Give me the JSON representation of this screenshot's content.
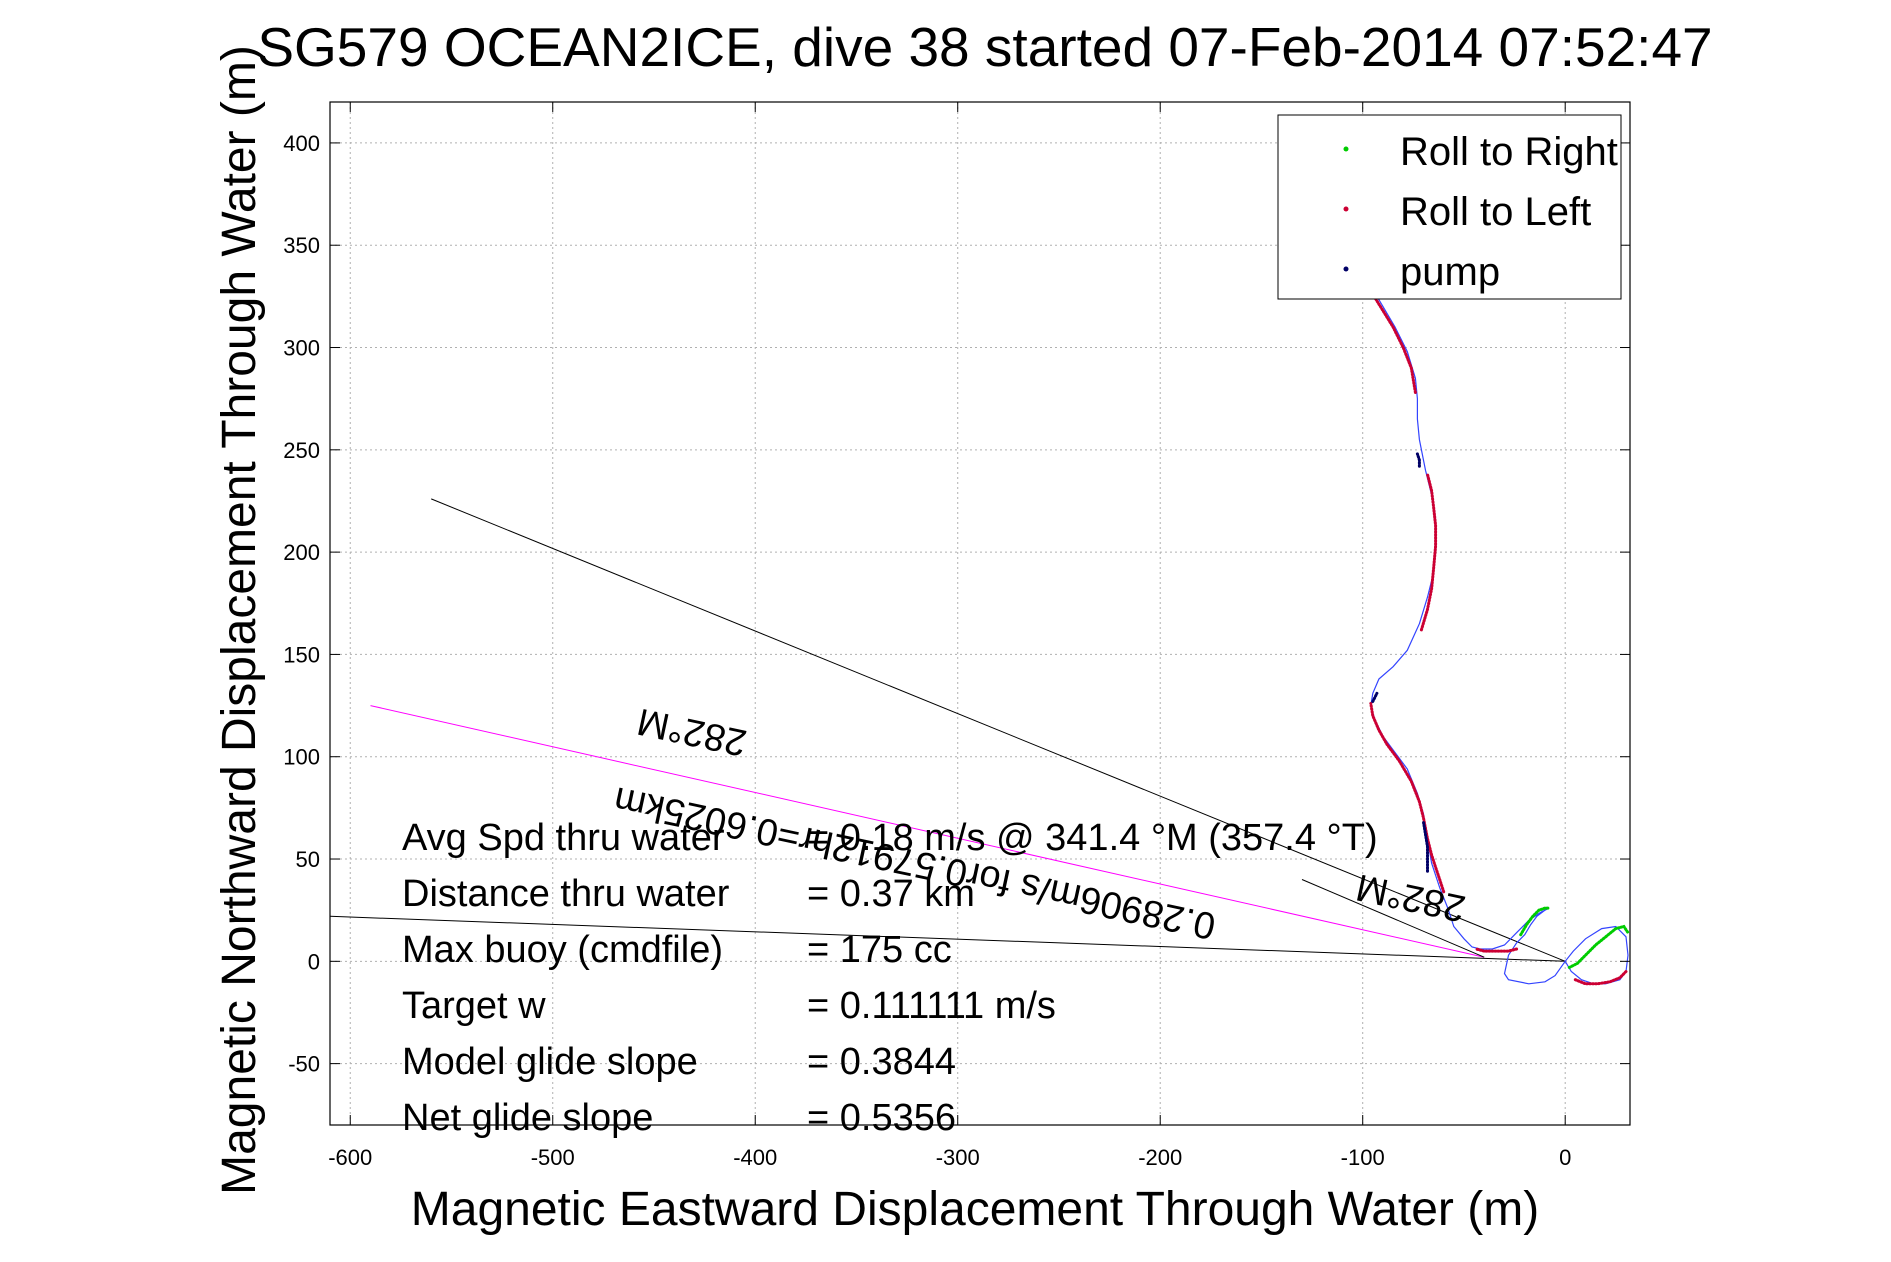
{
  "chart_data": {
    "type": "line",
    "title": "SG579 OCEAN2ICE, dive 38 started 07-Feb-2014 07:52:47",
    "xlabel": "Magnetic Eastward Displacement Through Water (m)",
    "ylabel": "Magnetic Northward Displacement Through Water (m)",
    "xlim": [
      -610,
      32
    ],
    "ylim": [
      -80,
      420
    ],
    "xticks": [
      -600,
      -500,
      -400,
      -300,
      -200,
      -100,
      0
    ],
    "yticks": [
      -50,
      0,
      50,
      100,
      150,
      200,
      250,
      300,
      350,
      400
    ],
    "grid": true,
    "legend_position": "top-right",
    "legend": [
      {
        "label": "Roll to Right",
        "color": "#00cc00"
      },
      {
        "label": "Roll to Left",
        "color": "#cc0033"
      },
      {
        "label": "pump",
        "color": "#000066"
      }
    ],
    "track": {
      "color": "#3344ff",
      "points": [
        [
          0,
          0
        ],
        [
          4,
          -3
        ],
        [
          10,
          -8
        ],
        [
          20,
          -12
        ],
        [
          28,
          -10
        ],
        [
          31,
          -5
        ],
        [
          31,
          5
        ],
        [
          30,
          14
        ],
        [
          27,
          17
        ],
        [
          22,
          17
        ],
        [
          15,
          14
        ],
        [
          8,
          8
        ],
        [
          3,
          3
        ],
        [
          0,
          0
        ],
        [
          -3,
          -3
        ],
        [
          -8,
          -7
        ],
        [
          -12,
          -10
        ],
        [
          -18,
          -11
        ],
        [
          -28,
          -11
        ],
        [
          -40,
          -10
        ],
        [
          -50,
          -10
        ],
        [
          -58,
          -11
        ],
        [
          -66,
          -11
        ],
        [
          -72,
          -10
        ],
        [
          -80,
          -9
        ],
        [
          -87,
          -8
        ],
        [
          -92,
          -7
        ],
        [
          -96,
          -5
        ],
        [
          -98,
          -3
        ],
        [
          -99,
          0
        ],
        [
          -98,
          3
        ],
        [
          -96,
          5
        ],
        [
          -93,
          7
        ],
        [
          -90,
          8
        ],
        [
          -86,
          9
        ],
        [
          -82,
          10
        ],
        [
          -78,
          10
        ],
        [
          -74,
          10
        ],
        [
          -70,
          10
        ],
        [
          -66,
          10
        ],
        [
          -62,
          9
        ],
        [
          -58,
          8
        ],
        [
          -54,
          6
        ],
        [
          -50,
          4
        ],
        [
          -46,
          3
        ],
        [
          -42,
          2
        ],
        [
          -38,
          1
        ],
        [
          -36,
          0
        ],
        [
          -38,
          -2
        ],
        [
          -45,
          -4
        ],
        [
          -55,
          -5
        ],
        [
          -62,
          -6
        ],
        [
          -66,
          -7
        ],
        [
          -70,
          -7
        ],
        [
          -74,
          -6
        ],
        [
          -78,
          -5
        ],
        [
          -82,
          -4
        ],
        [
          -86,
          -3
        ],
        [
          -90,
          -2
        ],
        [
          -93,
          0
        ],
        [
          -94,
          3
        ],
        [
          -92,
          8
        ],
        [
          -88,
          12
        ],
        [
          -82,
          16
        ],
        [
          -75,
          19
        ],
        [
          -68,
          22
        ],
        [
          -62,
          24
        ],
        [
          -55,
          25
        ],
        [
          -48,
          26
        ],
        [
          -42,
          26
        ],
        [
          -36,
          26
        ],
        [
          -30,
          26
        ],
        [
          -24,
          26
        ],
        [
          -18,
          26
        ],
        [
          -12,
          25
        ],
        [
          -8,
          23
        ],
        [
          -5,
          20
        ],
        [
          -3,
          16
        ],
        [
          -2,
          12
        ],
        [
          -1,
          8
        ],
        [
          0,
          4
        ],
        [
          0,
          0
        ]
      ],
      "poly_note": ""
    },
    "main_track": {
      "points": [
        [
          0,
          0
        ],
        [
          3,
          -5
        ],
        [
          8,
          -9
        ],
        [
          14,
          -11
        ],
        [
          20,
          -11
        ],
        [
          27,
          -9
        ],
        [
          30,
          -5
        ],
        [
          31,
          3
        ],
        [
          30,
          12
        ],
        [
          25,
          17
        ],
        [
          18,
          16
        ],
        [
          10,
          11
        ],
        [
          4,
          5
        ],
        [
          0,
          0
        ],
        [
          -5,
          -7
        ],
        [
          -10,
          -10
        ],
        [
          -18,
          -11
        ],
        [
          -28,
          -9
        ],
        [
          -30,
          -6
        ],
        [
          -28,
          3
        ],
        [
          -24,
          9
        ],
        [
          -20,
          13
        ],
        [
          -17,
          18
        ],
        [
          -14,
          22
        ],
        [
          -10,
          25
        ],
        [
          -8,
          26
        ],
        [
          -12,
          24
        ],
        [
          -18,
          20
        ],
        [
          -24,
          14
        ],
        [
          -30,
          8
        ],
        [
          -36,
          6
        ],
        [
          -42,
          6
        ],
        [
          -46,
          7
        ],
        [
          -50,
          11
        ],
        [
          -55,
          17
        ],
        [
          -58,
          26
        ],
        [
          -62,
          36
        ],
        [
          -66,
          48
        ],
        [
          -68,
          60
        ],
        [
          -70,
          72
        ],
        [
          -73,
          82
        ],
        [
          -78,
          94
        ],
        [
          -84,
          102
        ],
        [
          -90,
          110
        ],
        [
          -94,
          118
        ],
        [
          -96,
          125
        ],
        [
          -95,
          131
        ],
        [
          -92,
          138
        ],
        [
          -85,
          144
        ],
        [
          -78,
          152
        ],
        [
          -72,
          165
        ],
        [
          -68,
          178
        ],
        [
          -65,
          190
        ],
        [
          -64,
          203
        ],
        [
          -64,
          215
        ],
        [
          -66,
          228
        ],
        [
          -69,
          240
        ],
        [
          -72,
          255
        ],
        [
          -73,
          265
        ],
        [
          -73,
          275
        ],
        [
          -74,
          285
        ],
        [
          -78,
          298
        ],
        [
          -84,
          310
        ],
        [
          -90,
          320
        ],
        [
          -96,
          330
        ],
        [
          -100,
          338
        ]
      ]
    },
    "segments": [
      {
        "series": "Roll to Right",
        "color": "#00cc00",
        "points": [
          [
            2,
            -3
          ],
          [
            6,
            -1
          ],
          [
            10,
            3
          ],
          [
            15,
            8
          ],
          [
            20,
            12
          ],
          [
            25,
            16
          ],
          [
            29,
            17
          ],
          [
            31,
            14
          ]
        ]
      },
      {
        "series": "Roll to Right",
        "color": "#00cc00",
        "points": [
          [
            -22,
            13
          ],
          [
            -19,
            18
          ],
          [
            -16,
            22
          ],
          [
            -13,
            25
          ],
          [
            -10,
            26
          ],
          [
            -8,
            26
          ]
        ]
      },
      {
        "series": "Roll to Left",
        "color": "#cc0033",
        "points": [
          [
            5,
            -9
          ],
          [
            10,
            -11
          ],
          [
            16,
            -11
          ],
          [
            22,
            -10
          ],
          [
            27,
            -8
          ],
          [
            30,
            -5
          ]
        ]
      },
      {
        "series": "Roll to Left",
        "color": "#cc0033",
        "points": [
          [
            -24,
            6
          ],
          [
            -28,
            5
          ],
          [
            -34,
            5
          ],
          [
            -40,
            5
          ],
          [
            -44,
            6
          ]
        ]
      },
      {
        "series": "Roll to Left",
        "color": "#cc0033",
        "points": [
          [
            -60,
            34
          ],
          [
            -62,
            40
          ],
          [
            -64,
            46
          ],
          [
            -66,
            52
          ],
          [
            -68,
            60
          ],
          [
            -70,
            70
          ],
          [
            -72,
            78
          ],
          [
            -76,
            88
          ],
          [
            -82,
            98
          ],
          [
            -88,
            106
          ],
          [
            -92,
            113
          ],
          [
            -95,
            120
          ],
          [
            -96,
            126
          ]
        ]
      },
      {
        "series": "Roll to Left",
        "color": "#cc0033",
        "points": [
          [
            -71,
            162
          ],
          [
            -68,
            172
          ],
          [
            -66,
            182
          ],
          [
            -65,
            192
          ],
          [
            -64,
            203
          ],
          [
            -64,
            213
          ],
          [
            -65,
            222
          ],
          [
            -66,
            230
          ],
          [
            -68,
            238
          ]
        ]
      },
      {
        "series": "Roll to Left",
        "color": "#cc0033",
        "points": [
          [
            -74,
            278
          ],
          [
            -76,
            290
          ],
          [
            -80,
            300
          ],
          [
            -85,
            310
          ],
          [
            -90,
            318
          ],
          [
            -95,
            326
          ],
          [
            -100,
            333
          ]
        ]
      },
      {
        "series": "pump",
        "color": "#000066",
        "points": [
          [
            -68,
            44
          ],
          [
            -68,
            48
          ],
          [
            -68,
            52
          ],
          [
            -68,
            56
          ],
          [
            -69,
            62
          ],
          [
            -70,
            68
          ]
        ]
      },
      {
        "series": "pump",
        "color": "#000066",
        "points": [
          [
            -95,
            127
          ],
          [
            -94,
            129
          ],
          [
            -93,
            131
          ]
        ]
      },
      {
        "series": "pump",
        "color": "#000066",
        "points": [
          [
            -72,
            242
          ],
          [
            -72,
            245
          ],
          [
            -73,
            248
          ]
        ]
      }
    ],
    "reference_lines": [
      {
        "color": "#000000",
        "points": [
          [
            0,
            0
          ],
          [
            -560,
            226
          ]
        ]
      },
      {
        "color": "#000000",
        "points": [
          [
            0,
            0
          ],
          [
            -610,
            22
          ]
        ]
      },
      {
        "color": "#ff00ff",
        "points": [
          [
            -40,
            2
          ],
          [
            -590,
            125
          ]
        ]
      },
      {
        "color": "#000000",
        "points": [
          [
            -40,
            2
          ],
          [
            -130,
            40
          ]
        ]
      }
    ],
    "rotated_labels": [
      {
        "text": "282°M",
        "x": -430,
        "y": 118,
        "angle": 192
      },
      {
        "text": "282°M",
        "x": -75,
        "y": 37,
        "angle": 192
      },
      {
        "text": "0.28906m/s for0.57912hr=0.6025km",
        "x": -320,
        "y": 54,
        "angle": 192
      }
    ],
    "annotations": [
      {
        "label": "Avg Spd thru water",
        "value": "=  0.18 m/s @ 341.4 °M (357.4 °T)"
      },
      {
        "label": "Distance thru water",
        "value": "=  0.37 km"
      },
      {
        "label": "Max buoy (cmdfile)",
        "value": "= 175 cc"
      },
      {
        "label": "Target w",
        "value": "= 0.111111 m/s"
      },
      {
        "label": "Model glide slope",
        "value": "= 0.3844"
      },
      {
        "label": "Net glide slope",
        "value": "= 0.5356"
      }
    ]
  }
}
